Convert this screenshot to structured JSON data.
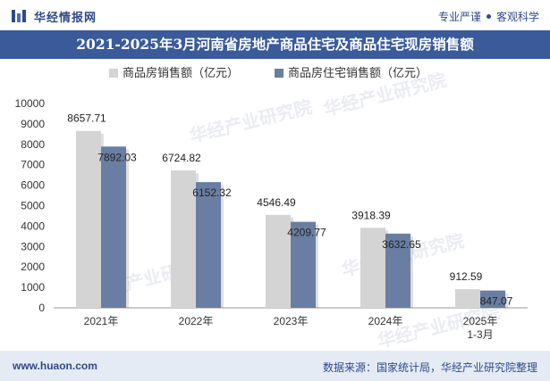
{
  "header": {
    "brand": "华经情报网",
    "tagline_left": "专业严谨",
    "tagline_right": "客观科学"
  },
  "footer": {
    "site": "www.huaon.com",
    "source": "数据来源：国家统计局，华经产业研究院整理"
  },
  "watermark": "华经产业研究院",
  "colors": {
    "brand": "#2d4a8a",
    "title_band": "#3a5a9a",
    "series_1": "#d4d4d4",
    "series_2": "#6a7ea3"
  },
  "chart_data": {
    "type": "bar",
    "title": "2021-2025年3月河南省房地产商品住宅及商品住宅现房销售额",
    "categories": [
      "2021年",
      "2022年",
      "2023年",
      "2024年",
      "2025年\n1-3月"
    ],
    "series": [
      {
        "name": "商品房销售额（亿元）",
        "values": [
          8657.71,
          6724.82,
          4546.49,
          3918.39,
          912.59
        ]
      },
      {
        "name": "商品房住宅销售额（亿元）",
        "values": [
          7892.03,
          6152.32,
          4209.77,
          3632.65,
          847.07
        ]
      }
    ],
    "ylim": [
      0,
      10000
    ],
    "yticks": [
      0,
      1000,
      2000,
      3000,
      4000,
      5000,
      6000,
      7000,
      8000,
      9000,
      10000
    ],
    "legend": "top",
    "grid": false
  }
}
